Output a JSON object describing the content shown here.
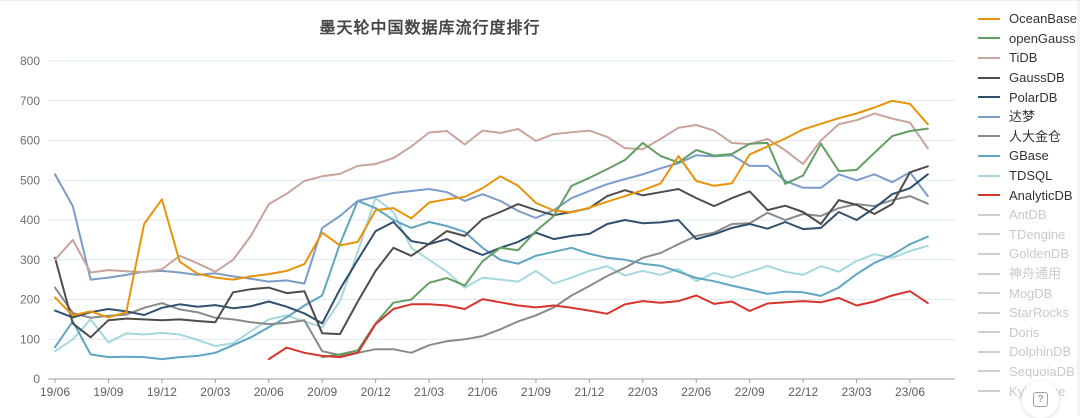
{
  "title": {
    "text": "墨天轮中国数据库流行度排行",
    "color": "#464646"
  },
  "help_button": {
    "icon": "question-mark",
    "symbol": "?"
  },
  "legend": {
    "position": "right",
    "disabled_color": "#cfcfcf",
    "disabled_text_color": "#c9c9c9",
    "active_text_color": "#333333"
  },
  "axes": {
    "y_tick_labels": [
      "0",
      "100",
      "200",
      "300",
      "400",
      "500",
      "600",
      "700",
      "800"
    ],
    "x_tick_labels": [
      "19/06",
      "19/09",
      "19/12",
      "20/03",
      "20/06",
      "20/09",
      "20/12",
      "21/03",
      "21/06",
      "21/09",
      "21/12",
      "22/03",
      "22/06",
      "22/09",
      "22/12",
      "23/03",
      "23/06"
    ]
  },
  "chart_data": {
    "type": "line",
    "title": "墨天轮中国数据库流行度排行",
    "x_start": "2019-06",
    "x_end": "2023-07",
    "months_total": 50,
    "x_tick_month_indices": [
      0,
      3,
      6,
      9,
      12,
      15,
      18,
      21,
      24,
      27,
      30,
      33,
      36,
      39,
      42,
      45,
      48
    ],
    "x_tick_labels": [
      "19/06",
      "19/09",
      "19/12",
      "20/03",
      "20/06",
      "20/09",
      "20/12",
      "21/03",
      "21/06",
      "21/09",
      "21/12",
      "22/03",
      "22/06",
      "22/09",
      "22/12",
      "23/03",
      "23/06"
    ],
    "ylim": [
      0,
      800
    ],
    "y_ticks": [
      0,
      100,
      200,
      300,
      400,
      500,
      600,
      700,
      800
    ],
    "grid": "horizontal",
    "legend_position": "right",
    "series": [
      {
        "name": "OceanBase",
        "color": "#E8940A",
        "enabled": true,
        "start_index": 0,
        "values": [
          205,
          160,
          170,
          155,
          168,
          390,
          452,
          295,
          265,
          255,
          250,
          258,
          264,
          272,
          289,
          368,
          336,
          345,
          425,
          430,
          404,
          444,
          452,
          458,
          480,
          510,
          486,
          443,
          424,
          419,
          431,
          446,
          460,
          475,
          492,
          561,
          498,
          486,
          492,
          565,
          585,
          605,
          628,
          642,
          656,
          668,
          683,
          700,
          692,
          641
        ]
      },
      {
        "name": "openGauss",
        "color": "#629F62",
        "enabled": true,
        "start_index": 15,
        "values": [
          55,
          62,
          72,
          140,
          192,
          200,
          242,
          254,
          235,
          296,
          330,
          324,
          372,
          410,
          486,
          506,
          528,
          551,
          594,
          561,
          545,
          576,
          562,
          566,
          592,
          594,
          491,
          512,
          592,
          523,
          526,
          569,
          611,
          624,
          630
        ]
      },
      {
        "name": "TiDB",
        "color": "#C8A49A",
        "enabled": true,
        "start_index": 0,
        "values": [
          300,
          350,
          268,
          274,
          271,
          269,
          276,
          310,
          291,
          270,
          300,
          360,
          440,
          466,
          498,
          510,
          516,
          536,
          541,
          556,
          585,
          620,
          624,
          590,
          625,
          619,
          629,
          599,
          616,
          621,
          625,
          609,
          581,
          578,
          604,
          632,
          639,
          625,
          594,
          591,
          604,
          575,
          541,
          600,
          641,
          651,
          668,
          655,
          645,
          580
        ]
      },
      {
        "name": "GaussDB",
        "color": "#4D4D4D",
        "enabled": true,
        "start_index": 0,
        "values": [
          305,
          140,
          105,
          148,
          152,
          150,
          148,
          150,
          146,
          143,
          218,
          226,
          230,
          216,
          221,
          115,
          113,
          195,
          272,
          330,
          310,
          340,
          372,
          360,
          402,
          420,
          440,
          425,
          412,
          420,
          430,
          460,
          475,
          462,
          470,
          478,
          455,
          435,
          455,
          472,
          425,
          436,
          420,
          390,
          450,
          438,
          415,
          440,
          520,
          535
        ]
      },
      {
        "name": "PolarDB",
        "color": "#32506E",
        "enabled": true,
        "start_index": 0,
        "values": [
          172,
          155,
          168,
          176,
          170,
          161,
          179,
          188,
          182,
          186,
          178,
          183,
          195,
          182,
          165,
          140,
          226,
          300,
          372,
          395,
          347,
          339,
          352,
          330,
          312,
          330,
          345,
          368,
          352,
          360,
          365,
          390,
          400,
          392,
          394,
          400,
          352,
          364,
          380,
          390,
          378,
          395,
          377,
          380,
          420,
          400,
          430,
          465,
          480,
          515
        ]
      },
      {
        "name": "达梦",
        "color": "#7B9CC9",
        "enabled": true,
        "start_index": 0,
        "values": [
          515,
          435,
          250,
          255,
          262,
          270,
          272,
          268,
          262,
          266,
          258,
          252,
          245,
          248,
          240,
          380,
          410,
          448,
          458,
          468,
          473,
          478,
          470,
          448,
          465,
          448,
          423,
          405,
          425,
          455,
          473,
          490,
          503,
          515,
          530,
          543,
          563,
          560,
          563,
          536,
          536,
          498,
          481,
          481,
          515,
          500,
          515,
          495,
          520,
          460
        ]
      },
      {
        "name": "人大金仓",
        "color": "#8A8A8A",
        "enabled": true,
        "start_index": 0,
        "values": [
          230,
          166,
          154,
          159,
          162,
          179,
          191,
          175,
          168,
          154,
          150,
          143,
          138,
          141,
          148,
          70,
          60,
          66,
          75,
          75,
          66,
          85,
          95,
          100,
          108,
          125,
          145,
          160,
          180,
          210,
          234,
          259,
          280,
          305,
          317,
          339,
          360,
          368,
          390,
          392,
          418,
          400,
          415,
          410,
          430,
          440,
          435,
          450,
          460,
          441
        ]
      },
      {
        "name": "GBase",
        "color": "#5EA6C2",
        "enabled": true,
        "start_index": 0,
        "values": [
          80,
          145,
          62,
          55,
          56,
          55,
          50,
          55,
          58,
          66,
          85,
          105,
          130,
          155,
          185,
          210,
          340,
          448,
          430,
          400,
          380,
          395,
          385,
          370,
          330,
          300,
          290,
          310,
          320,
          330,
          315,
          305,
          300,
          290,
          285,
          270,
          254,
          246,
          235,
          225,
          214,
          220,
          218,
          209,
          230,
          264,
          292,
          312,
          339,
          358
        ]
      },
      {
        "name": "TDSQL",
        "color": "#A6D7DF",
        "enabled": true,
        "start_index": 0,
        "values": [
          70,
          100,
          150,
          92,
          115,
          112,
          116,
          112,
          98,
          83,
          90,
          120,
          150,
          160,
          145,
          130,
          196,
          320,
          455,
          420,
          330,
          300,
          270,
          230,
          255,
          250,
          245,
          272,
          240,
          255,
          272,
          284,
          260,
          272,
          262,
          277,
          246,
          267,
          255,
          270,
          284,
          270,
          262,
          284,
          270,
          297,
          314,
          305,
          322,
          335
        ]
      },
      {
        "name": "AnalyticDB",
        "color": "#D8342C",
        "enabled": true,
        "start_index": 12,
        "values": [
          50,
          79,
          66,
          58,
          55,
          66,
          138,
          176,
          188,
          188,
          185,
          176,
          201,
          193,
          185,
          180,
          185,
          179,
          172,
          164,
          188,
          196,
          192,
          196,
          210,
          189,
          195,
          171,
          190,
          193,
          196,
          193,
          204,
          185,
          195,
          210,
          221,
          191
        ]
      },
      {
        "name": "AntDB",
        "color": "#cfcfcf",
        "enabled": false,
        "values": []
      },
      {
        "name": "TDengine",
        "color": "#cfcfcf",
        "enabled": false,
        "values": []
      },
      {
        "name": "GoldenDB",
        "color": "#cfcfcf",
        "enabled": false,
        "values": []
      },
      {
        "name": "神舟通用",
        "color": "#cfcfcf",
        "enabled": false,
        "values": []
      },
      {
        "name": "MogDB",
        "color": "#cfcfcf",
        "enabled": false,
        "values": []
      },
      {
        "name": "StarRocks",
        "color": "#cfcfcf",
        "enabled": false,
        "values": []
      },
      {
        "name": "Doris",
        "color": "#cfcfcf",
        "enabled": false,
        "values": []
      },
      {
        "name": "DolphinDB",
        "color": "#cfcfcf",
        "enabled": false,
        "values": []
      },
      {
        "name": "SequoiaDB",
        "color": "#cfcfcf",
        "enabled": false,
        "values": []
      },
      {
        "name": "Kyligence",
        "color": "#cfcfcf",
        "enabled": false,
        "values": []
      }
    ],
    "colors": {
      "grid": "#DFE8F3",
      "axis_line": "#9B9B9B",
      "y_tick_text": "#707070",
      "x_tick_text": "#5F5F5F"
    }
  }
}
